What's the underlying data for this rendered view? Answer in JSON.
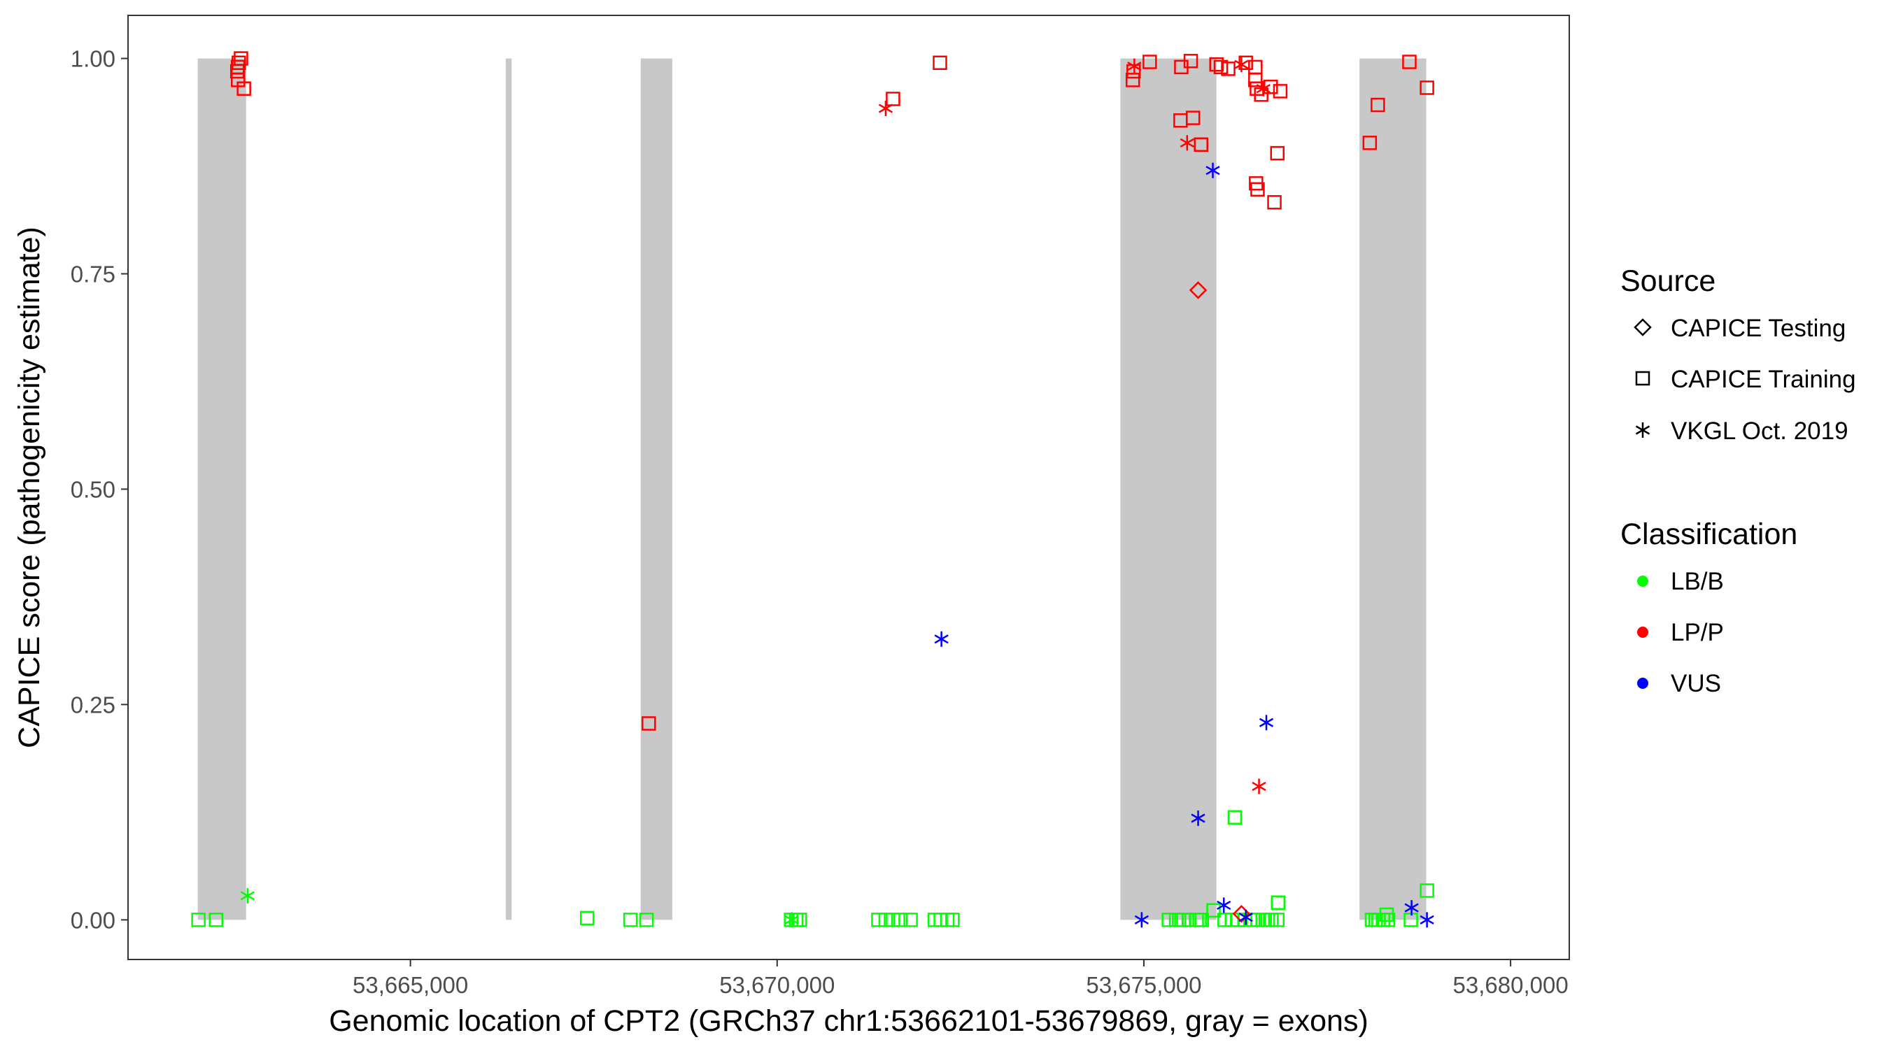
{
  "chart_data": {
    "type": "scatter",
    "xlabel": "Genomic location of CPT2 (GRCh37 chr1:53662101-53679869, gray = exons)",
    "ylabel": "CAPICE score (pathogenicity estimate)",
    "xlim": [
      53661150,
      53680800
    ],
    "ylim": [
      -0.046,
      1.05
    ],
    "x_ticks": [
      53665000,
      53670000,
      53675000,
      53680000
    ],
    "x_tick_labels": [
      "53,665,000",
      "53,670,000",
      "53,675,000",
      "53,680,000"
    ],
    "y_ticks": [
      0.0,
      0.25,
      0.5,
      0.75,
      1.0
    ],
    "y_tick_labels": [
      "0.00",
      "0.25",
      "0.50",
      "0.75",
      "1.00"
    ],
    "grid": false,
    "exon_color": "#c8c8c8",
    "exons": [
      [
        53662101,
        53662760
      ],
      [
        53666300,
        53666380
      ],
      [
        53668140,
        53668570
      ],
      [
        53674680,
        53675990
      ],
      [
        53677940,
        53678850
      ]
    ],
    "legends": {
      "position": "right",
      "source": {
        "title": "Source",
        "items": [
          {
            "label": "CAPICE Testing",
            "shape": "diamond"
          },
          {
            "label": "CAPICE Training",
            "shape": "square"
          },
          {
            "label": "VKGL Oct. 2019",
            "shape": "asterisk"
          }
        ]
      },
      "classification": {
        "title": "Classification",
        "items": [
          {
            "label": "LB/B",
            "color": "#00ff00"
          },
          {
            "label": "LP/P",
            "color": "#ff0000"
          },
          {
            "label": "VUS",
            "color": "#0000ff"
          }
        ]
      }
    },
    "series": [
      {
        "shape": "square",
        "classification": "LP/P",
        "points": [
          [
            53662690,
            1.0
          ],
          [
            53662660,
            0.995
          ],
          [
            53662650,
            0.99
          ],
          [
            53662640,
            0.985
          ],
          [
            53662650,
            0.975
          ],
          [
            53662730,
            0.965
          ],
          [
            53668250,
            0.228
          ],
          [
            53671580,
            0.953
          ],
          [
            53672220,
            0.995
          ],
          [
            53674860,
            0.985
          ],
          [
            53674850,
            0.975
          ],
          [
            53675080,
            0.996
          ],
          [
            53675510,
            0.99
          ],
          [
            53675640,
            0.997
          ],
          [
            53675990,
            0.993
          ],
          [
            53676050,
            0.99
          ],
          [
            53676150,
            0.988
          ],
          [
            53676390,
            0.995
          ],
          [
            53676520,
            0.99
          ],
          [
            53676520,
            0.975
          ],
          [
            53676600,
            0.958
          ],
          [
            53676540,
            0.965
          ],
          [
            53676730,
            0.967
          ],
          [
            53676860,
            0.962
          ],
          [
            53675500,
            0.928
          ],
          [
            53675670,
            0.931
          ],
          [
            53675780,
            0.9
          ],
          [
            53676820,
            0.89
          ],
          [
            53676530,
            0.855
          ],
          [
            53676550,
            0.848
          ],
          [
            53676780,
            0.833
          ],
          [
            53678080,
            0.902
          ],
          [
            53678190,
            0.946
          ],
          [
            53678620,
            0.996
          ],
          [
            53678860,
            0.966
          ]
        ]
      },
      {
        "shape": "square",
        "classification": "LB/B",
        "points": [
          [
            53662110,
            0.0
          ],
          [
            53662350,
            0.0
          ],
          [
            53667410,
            0.002
          ],
          [
            53668000,
            0.0
          ],
          [
            53668220,
            0.0
          ],
          [
            53670190,
            0.0
          ],
          [
            53670260,
            0.0
          ],
          [
            53670310,
            0.0
          ],
          [
            53671380,
            0.0
          ],
          [
            53671480,
            0.0
          ],
          [
            53671580,
            0.0
          ],
          [
            53671680,
            0.0
          ],
          [
            53671820,
            0.0
          ],
          [
            53672150,
            0.0
          ],
          [
            53672230,
            0.0
          ],
          [
            53672320,
            0.0
          ],
          [
            53672390,
            0.0
          ],
          [
            53675340,
            0.0
          ],
          [
            53675440,
            0.0
          ],
          [
            53675540,
            0.0
          ],
          [
            53675620,
            0.0
          ],
          [
            53675720,
            0.0
          ],
          [
            53675790,
            0.0
          ],
          [
            53675480,
            0.0
          ],
          [
            53675620,
            0.0
          ],
          [
            53675760,
            0.0
          ],
          [
            53675950,
            0.011
          ],
          [
            53676100,
            0.0
          ],
          [
            53676200,
            0.0
          ],
          [
            53676280,
            0.0
          ],
          [
            53676380,
            0.0
          ],
          [
            53676490,
            0.0
          ],
          [
            53676550,
            0.0
          ],
          [
            53676620,
            0.0
          ],
          [
            53676690,
            0.0
          ],
          [
            53676740,
            0.0
          ],
          [
            53676820,
            0.0
          ],
          [
            53676240,
            0.119
          ],
          [
            53676830,
            0.02
          ],
          [
            53678110,
            0.0
          ],
          [
            53678160,
            0.0
          ],
          [
            53678200,
            0.0
          ],
          [
            53678260,
            0.0
          ],
          [
            53678330,
            0.0
          ],
          [
            53678310,
            0.006
          ],
          [
            53678640,
            0.0
          ],
          [
            53678860,
            0.034
          ]
        ]
      },
      {
        "shape": "diamond",
        "classification": "LP/P",
        "points": [
          [
            53675740,
            0.731
          ],
          [
            53676330,
            0.007
          ]
        ]
      },
      {
        "shape": "asterisk",
        "classification": "LP/P",
        "points": [
          [
            53671480,
            0.942
          ],
          [
            53674870,
            0.991
          ],
          [
            53675590,
            0.902
          ],
          [
            53676330,
            0.993
          ],
          [
            53676630,
            0.965
          ],
          [
            53676570,
            0.155
          ]
        ]
      },
      {
        "shape": "asterisk",
        "classification": "LB/B",
        "points": [
          [
            53662780,
            0.028
          ],
          [
            53670200,
            0.0
          ]
        ]
      },
      {
        "shape": "asterisk",
        "classification": "VUS",
        "points": [
          [
            53672240,
            0.326
          ],
          [
            53674970,
            0.0
          ],
          [
            53675940,
            0.87
          ],
          [
            53676670,
            0.229
          ],
          [
            53675740,
            0.118
          ],
          [
            53676090,
            0.017
          ],
          [
            53676390,
            0.003
          ],
          [
            53678650,
            0.014
          ],
          [
            53678860,
            0.0
          ]
        ]
      }
    ]
  }
}
